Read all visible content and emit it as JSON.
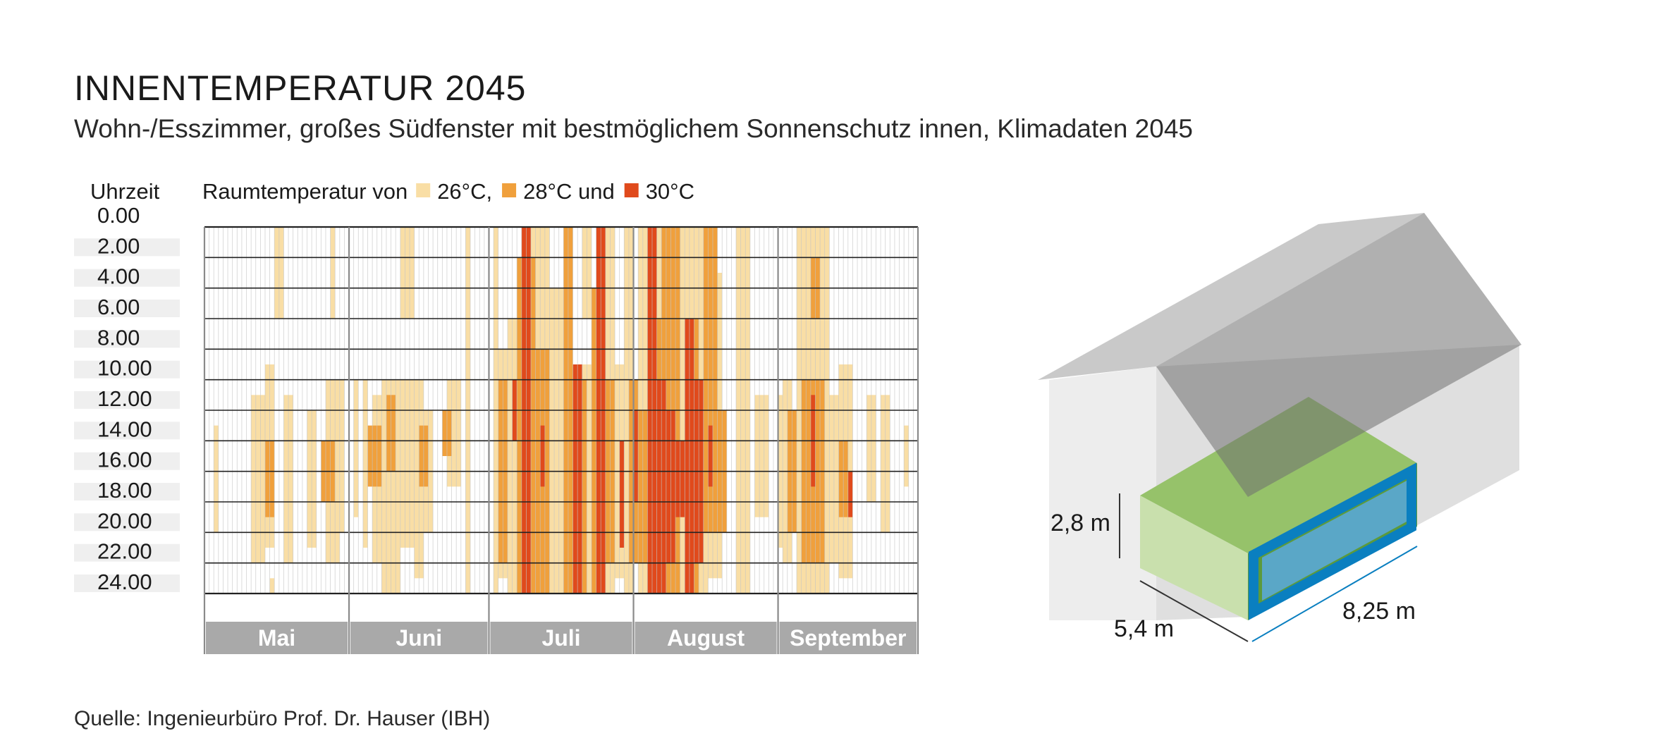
{
  "header": {
    "title": "INNENTEMPERATUR 2045",
    "subtitle": "Wohn-/Esszimmer, großes Südfenster mit bestmöglichem Sonnenschutz innen, Klimadaten 2045"
  },
  "source": "Quelle: Ingenieurbüro Prof. Dr. Hauser (IBH)",
  "chart_data": {
    "type": "heatmap",
    "y_axis_title": "Uhrzeit",
    "y_ticks": [
      "0.00",
      "2.00",
      "4.00",
      "6.00",
      "8.00",
      "10.00",
      "12.00",
      "14.00",
      "16.00",
      "18.00",
      "20.00",
      "22.00",
      "24.00"
    ],
    "ylim": [
      0,
      24
    ],
    "x_unit": "Tag (1 = 1. Mai)",
    "xlim": [
      0,
      153
    ],
    "months": [
      {
        "name": "Mai",
        "days": 31
      },
      {
        "name": "Juni",
        "days": 30
      },
      {
        "name": "Juli",
        "days": 31
      },
      {
        "name": "August",
        "days": 31
      },
      {
        "name": "September",
        "days": 30
      }
    ],
    "legend": {
      "prefix": "Raumtemperatur von",
      "items": [
        {
          "label": "26°C,",
          "color": "#f9dea5"
        },
        {
          "label": "28°C und",
          "color": "#f0a03c"
        },
        {
          "label": "30°C",
          "color": "#e04a1c"
        }
      ]
    },
    "band_style": [
      {
        "level": "26",
        "color": "#f9dea5"
      },
      {
        "level": "28",
        "color": "#f0a03c"
      },
      {
        "level": "30",
        "color": "#e04a1c"
      }
    ],
    "bands_unit": "[level, Tag von, Tag bis, Stunde von, Stunde bis]",
    "bands": [
      [
        "26",
        2,
        3,
        13,
        20
      ],
      [
        "26",
        10,
        13,
        11,
        22
      ],
      [
        "26",
        13,
        15,
        9,
        21
      ],
      [
        "26",
        14,
        15,
        23,
        24
      ],
      [
        "26",
        15,
        17,
        0,
        6
      ],
      [
        "26",
        17,
        19,
        11,
        22
      ],
      [
        "26",
        22,
        24,
        12,
        21
      ],
      [
        "26",
        26,
        29,
        10,
        22
      ],
      [
        "26",
        27,
        28,
        0,
        6
      ],
      [
        "26",
        29,
        30,
        10,
        20
      ],
      [
        "26",
        32,
        33,
        10,
        19
      ],
      [
        "26",
        34,
        35,
        10,
        21
      ],
      [
        "26",
        36,
        38,
        11,
        22
      ],
      [
        "26",
        38,
        42,
        10,
        24
      ],
      [
        "26",
        42,
        45,
        10,
        21
      ],
      [
        "26",
        42,
        45,
        0,
        6
      ],
      [
        "26",
        45,
        47,
        10,
        23
      ],
      [
        "26",
        47,
        49,
        12,
        20
      ],
      [
        "26",
        52,
        55,
        10,
        17
      ],
      [
        "26",
        56,
        57,
        0,
        24
      ],
      [
        "26",
        62,
        63,
        0,
        24
      ],
      [
        "26",
        63,
        65,
        8,
        23
      ],
      [
        "26",
        65,
        70,
        6,
        24
      ],
      [
        "26",
        70,
        74,
        0,
        24
      ],
      [
        "26",
        74,
        78,
        4,
        24
      ],
      [
        "26",
        78,
        83,
        9,
        24
      ],
      [
        "26",
        81,
        83,
        0,
        6
      ],
      [
        "26",
        85,
        88,
        0,
        24
      ],
      [
        "26",
        88,
        90,
        9,
        23
      ],
      [
        "26",
        90,
        92,
        0,
        24
      ],
      [
        "26",
        93,
        95,
        0,
        24
      ],
      [
        "26",
        95,
        103,
        0,
        24
      ],
      [
        "26",
        103,
        106,
        0,
        24
      ],
      [
        "26",
        106,
        108,
        0,
        24
      ],
      [
        "26",
        108,
        111,
        3,
        23
      ],
      [
        "26",
        114,
        117,
        0,
        24
      ],
      [
        "26",
        118,
        121,
        11,
        19
      ],
      [
        "26",
        123,
        124,
        11,
        21
      ],
      [
        "26",
        124,
        126,
        10,
        22
      ],
      [
        "26",
        127,
        134,
        0,
        24
      ],
      [
        "26",
        134,
        136,
        11,
        22
      ],
      [
        "26",
        136,
        139,
        9,
        23
      ],
      [
        "26",
        142,
        144,
        11,
        18
      ],
      [
        "26",
        145,
        147,
        11,
        20
      ],
      [
        "26",
        150,
        151,
        13,
        17
      ],
      [
        "28",
        13,
        15,
        14,
        19
      ],
      [
        "28",
        25,
        28,
        14,
        18
      ],
      [
        "28",
        35,
        38,
        13,
        17
      ],
      [
        "28",
        39,
        41,
        11,
        16
      ],
      [
        "28",
        46,
        48,
        13,
        17
      ],
      [
        "28",
        51,
        53,
        12,
        15
      ],
      [
        "28",
        63,
        65,
        10,
        22
      ],
      [
        "28",
        67,
        71,
        2,
        24
      ],
      [
        "28",
        71,
        74,
        8,
        24
      ],
      [
        "28",
        77,
        79,
        0,
        24
      ],
      [
        "28",
        80,
        82,
        10,
        24
      ],
      [
        "28",
        83,
        85,
        4,
        24
      ],
      [
        "28",
        86,
        88,
        10,
        22
      ],
      [
        "28",
        91,
        93,
        10,
        22
      ],
      [
        "28",
        93,
        95,
        12,
        22
      ],
      [
        "28",
        95,
        98,
        6,
        24
      ],
      [
        "28",
        98,
        102,
        0,
        24
      ],
      [
        "28",
        104,
        106,
        6,
        24
      ],
      [
        "28",
        107,
        110,
        0,
        20
      ],
      [
        "28",
        110,
        112,
        12,
        20
      ],
      [
        "28",
        125,
        127,
        12,
        20
      ],
      [
        "28",
        128,
        133,
        10,
        22
      ],
      [
        "28",
        136,
        138,
        14,
        19
      ],
      [
        "28",
        130,
        132,
        2,
        6
      ],
      [
        "30",
        68,
        70,
        0,
        24
      ],
      [
        "30",
        66,
        67,
        10,
        14
      ],
      [
        "30",
        72,
        73,
        13,
        17
      ],
      [
        "30",
        79,
        81,
        9,
        24
      ],
      [
        "30",
        84,
        86,
        0,
        24
      ],
      [
        "30",
        89,
        90,
        14,
        21
      ],
      [
        "30",
        92,
        93,
        12,
        18
      ],
      [
        "30",
        95,
        97,
        0,
        24
      ],
      [
        "30",
        97,
        99,
        10,
        24
      ],
      [
        "30",
        99,
        101,
        12,
        22
      ],
      [
        "30",
        103,
        105,
        6,
        24
      ],
      [
        "30",
        105,
        107,
        10,
        22
      ],
      [
        "30",
        101,
        103,
        14,
        19
      ],
      [
        "30",
        108,
        109,
        13,
        17
      ],
      [
        "30",
        130,
        131,
        11,
        17
      ],
      [
        "30",
        138,
        139,
        16,
        19
      ]
    ]
  },
  "diagram": {
    "dimensions": {
      "height": "2,8 m",
      "depth": "5,4 m",
      "width": "8,25 m"
    }
  }
}
